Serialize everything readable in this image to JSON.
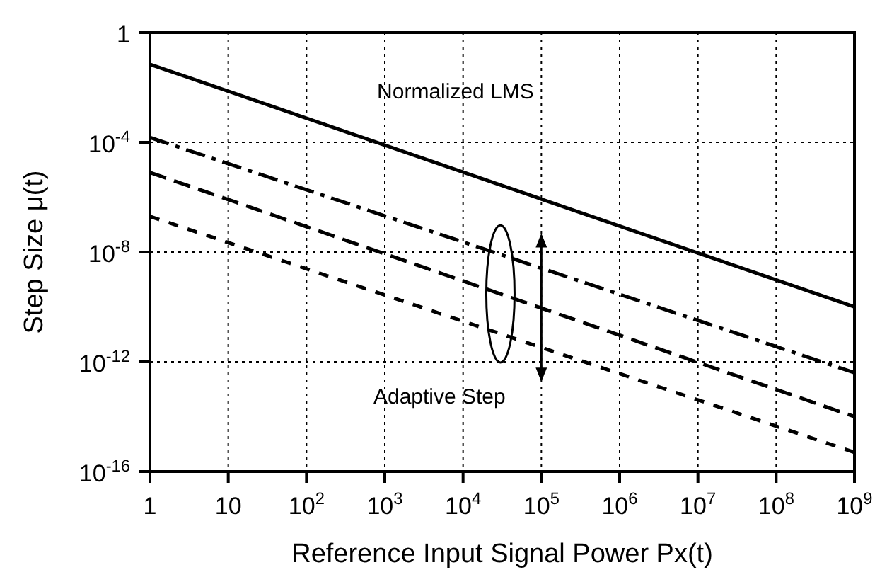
{
  "chart_data": {
    "type": "line",
    "xlabel": "Reference Input Signal Power Px(t)",
    "ylabel": "Step Size  μ(t)",
    "log": "xy",
    "grid": true,
    "legend": false,
    "marker": "none",
    "xlim": [
      1,
      1000000000
    ],
    "ylim": [
      1e-16,
      1
    ],
    "xticks": [
      1,
      10,
      {
        "value": 100,
        "label": "10$^{2}$"
      },
      {
        "value": 1000,
        "label": "10$^{3}$"
      },
      {
        "value": 10000,
        "label": "10$^{4}$"
      },
      {
        "value": 100000,
        "label": "10$^{5}$"
      },
      {
        "value": 1000000,
        "label": "10$^{6}$"
      },
      {
        "value": 10000000,
        "label": "10$^{7}$"
      },
      {
        "value": 100000000,
        "label": "10$^{8}$"
      },
      {
        "value": 1000000000,
        "label": "10$^{9}$"
      }
    ],
    "yticks": [
      {
        "value": 1e-16,
        "label": "10$^{-16}$"
      },
      {
        "value": 1e-12,
        "label": "10$^{-12}$"
      },
      {
        "value": 1e-08,
        "label": "10$^{-8}$"
      },
      {
        "value": 0.0001,
        "label": "10$^{-4}$"
      },
      1
    ],
    "x": [
      1,
      1000000000
    ],
    "series": [
      {
        "name": "Normalized LMS",
        "color": "#000000",
        "line_style": "solid",
        "values": [
          0.07,
          1e-10
        ]
      },
      {
        "color": "#000000",
        "line_style": "dashdot",
        "values": [
          0.00015,
          4e-13
        ]
      },
      {
        "color": "#000000",
        "line_style": "dashed",
        "values": [
          8e-06,
          1e-14
        ]
      },
      {
        "color": "#000000",
        "line_style": "dotted",
        "values": [
          2e-07,
          5e-16
        ]
      }
    ],
    "annotations": [
      "Adaptive Step"
    ]
  }
}
